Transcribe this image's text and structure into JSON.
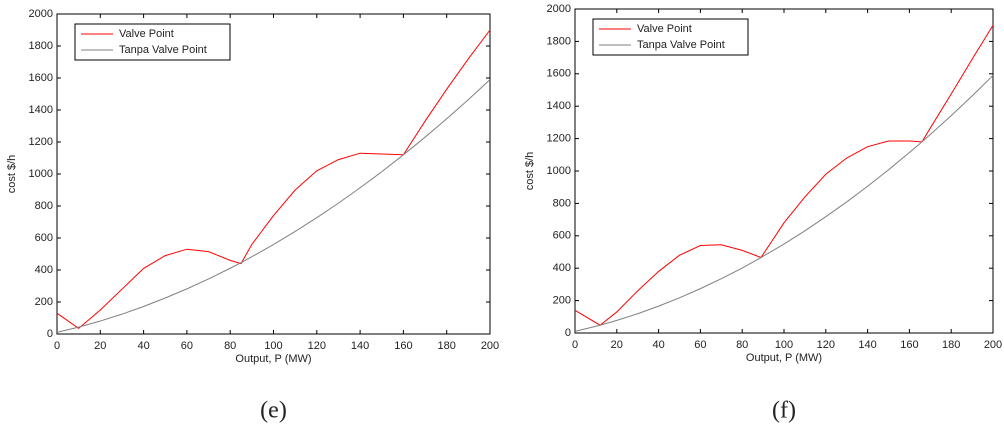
{
  "chart_data": [
    {
      "type": "line",
      "caption": "(e)",
      "xlabel": "Output, P (MW)",
      "ylabel": "cost $/h",
      "x": [
        0,
        10,
        20,
        30,
        40,
        50,
        60,
        70,
        80,
        85,
        90,
        100,
        110,
        120,
        130,
        140,
        150,
        160,
        170,
        180,
        190,
        200
      ],
      "series": [
        {
          "name": "Valve Point",
          "color": "#ff0000",
          "values": [
            130,
            35,
            150,
            280,
            410,
            490,
            530,
            515,
            460,
            440,
            560,
            740,
            900,
            1020,
            1090,
            1130,
            1125,
            1120,
            1330,
            1530,
            1720,
            1900
          ]
        },
        {
          "name": "Tanpa Valve Point",
          "color": "#808080",
          "values": [
            10,
            43,
            81,
            124,
            172,
            225,
            282,
            344,
            411,
            446,
            483,
            559,
            641,
            727,
            818,
            914,
            1014,
            1120,
            1230,
            1345,
            1465,
            1590
          ]
        }
      ],
      "xlim": [
        0,
        200
      ],
      "xticks": [
        0,
        20,
        40,
        60,
        80,
        100,
        120,
        140,
        160,
        180,
        200
      ],
      "ylim": [
        0,
        2000
      ],
      "yticks": [
        0,
        200,
        400,
        600,
        800,
        1000,
        1200,
        1400,
        1600,
        1800,
        2000
      ],
      "legend": "upper left"
    },
    {
      "type": "line",
      "caption": "(f)",
      "xlabel": "Output, P (MW)",
      "ylabel": "cost $/h",
      "x": [
        0,
        12,
        20,
        30,
        40,
        50,
        60,
        70,
        80,
        89,
        100,
        110,
        120,
        130,
        140,
        150,
        160,
        166,
        170,
        180,
        190,
        200
      ],
      "series": [
        {
          "name": "Valve Point",
          "color": "#ff0000",
          "values": [
            140,
            48,
            130,
            260,
            380,
            480,
            540,
            545,
            510,
            466,
            680,
            840,
            980,
            1080,
            1150,
            1185,
            1185,
            1180,
            1265,
            1475,
            1690,
            1900
          ]
        },
        {
          "name": "Tanpa Valve Point",
          "color": "#808080",
          "values": [
            10,
            48,
            78,
            119,
            166,
            217,
            274,
            335,
            401,
            466,
            549,
            631,
            718,
            809,
            906,
            1007,
            1114,
            1180,
            1225,
            1342,
            1463,
            1590
          ]
        }
      ],
      "xlim": [
        0,
        200
      ],
      "xticks": [
        0,
        20,
        40,
        60,
        80,
        100,
        120,
        140,
        160,
        180,
        200
      ],
      "ylim": [
        0,
        2000
      ],
      "yticks": [
        0,
        200,
        400,
        600,
        800,
        1000,
        1200,
        1400,
        1600,
        1800,
        2000
      ],
      "legend": "upper left"
    }
  ]
}
